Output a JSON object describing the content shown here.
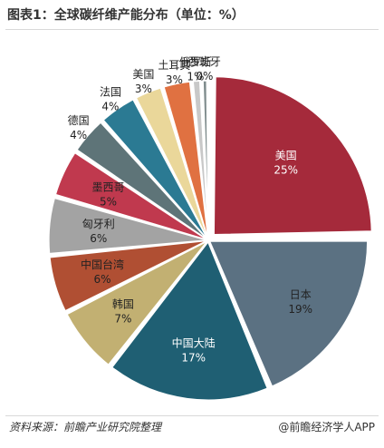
{
  "title": "图表1：全球碳纤维产能分布（单位：%）",
  "source": "资料来源：前瞻产业研究院整理",
  "brand": "@前瞻经济学人APP",
  "chart_data": {
    "type": "pie",
    "unit": "%",
    "slices": [
      {
        "label": "美国",
        "value": 25,
        "display": "25%",
        "color": "#a52a3b"
      },
      {
        "label": "日本",
        "value": 19,
        "display": "19%",
        "color": "#5b7182"
      },
      {
        "label": "中国大陆",
        "value": 17,
        "display": "17%",
        "color": "#1f5f73"
      },
      {
        "label": "韩国",
        "value": 7,
        "display": "7%",
        "color": "#c2b072"
      },
      {
        "label": "中国台湾",
        "value": 6,
        "display": "6%",
        "color": "#b04f33"
      },
      {
        "label": "匈牙利",
        "value": 6,
        "display": "6%",
        "color": "#a3a3a3"
      },
      {
        "label": "墨西哥",
        "value": 5,
        "display": "5%",
        "color": "#c0394e"
      },
      {
        "label": "德国",
        "value": 4,
        "display": "4%",
        "color": "#5e7478"
      },
      {
        "label": "法国",
        "value": 4,
        "display": "4%",
        "color": "#2b7a93"
      },
      {
        "label": "美国",
        "value": 3,
        "display": "3%",
        "color": "#ead79a"
      },
      {
        "label": "土耳其",
        "value": 3,
        "display": "3%",
        "color": "#e07141"
      },
      {
        "label": "俄罗斯",
        "value": 1,
        "display": "1%",
        "color": "#c8c8c8"
      },
      {
        "label": "西班牙",
        "value": 0,
        "display": "0%",
        "color": "#7f8c8d"
      }
    ]
  }
}
